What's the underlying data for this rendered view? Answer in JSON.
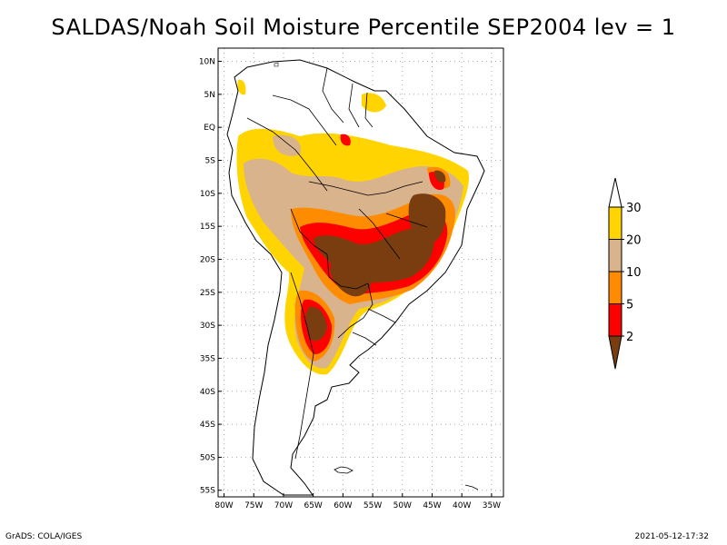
{
  "title": "SALDAS/Noah Soil Moisture Percentile SEP2004 lev = 1",
  "footer": {
    "left": "GrADS: COLA/IGES",
    "right": "2021-05-12-17:32"
  },
  "map": {
    "lat_ticks": [
      {
        "label": "10N",
        "value": 10
      },
      {
        "label": "5N",
        "value": 5
      },
      {
        "label": "EQ",
        "value": 0
      },
      {
        "label": "5S",
        "value": -5
      },
      {
        "label": "10S",
        "value": -10
      },
      {
        "label": "15S",
        "value": -15
      },
      {
        "label": "20S",
        "value": -20
      },
      {
        "label": "25S",
        "value": -25
      },
      {
        "label": "30S",
        "value": -30
      },
      {
        "label": "35S",
        "value": -35
      },
      {
        "label": "40S",
        "value": -40
      },
      {
        "label": "45S",
        "value": -45
      },
      {
        "label": "50S",
        "value": -50
      },
      {
        "label": "55S",
        "value": -55
      }
    ],
    "lon_ticks": [
      {
        "label": "80W",
        "value": -80
      },
      {
        "label": "75W",
        "value": -75
      },
      {
        "label": "70W",
        "value": -70
      },
      {
        "label": "65W",
        "value": -65
      },
      {
        "label": "60W",
        "value": -60
      },
      {
        "label": "55W",
        "value": -55
      },
      {
        "label": "50W",
        "value": -50
      },
      {
        "label": "45W",
        "value": -45
      },
      {
        "label": "40W",
        "value": -40
      },
      {
        "label": "35W",
        "value": -35
      }
    ],
    "lat_range": [
      -56,
      12
    ],
    "lon_range": [
      -81,
      -33
    ],
    "grid": true
  },
  "legend": {
    "placement": "right",
    "bins": [
      {
        "color": "#ffffff"
      },
      {
        "color": "#ffd400"
      },
      {
        "color": "#d9b38c"
      },
      {
        "color": "#ff8c00"
      },
      {
        "color": "#ff0000"
      },
      {
        "color": "#7a3d10"
      }
    ],
    "labels": [
      "30",
      "20",
      "10",
      "5",
      "2"
    ]
  },
  "colors": {
    "land": "#ffffff",
    "p2": "#7a3d10",
    "p5": "#ff0000",
    "p10": "#ff8c00",
    "p20": "#d9b38c",
    "p30": "#ffd400"
  }
}
